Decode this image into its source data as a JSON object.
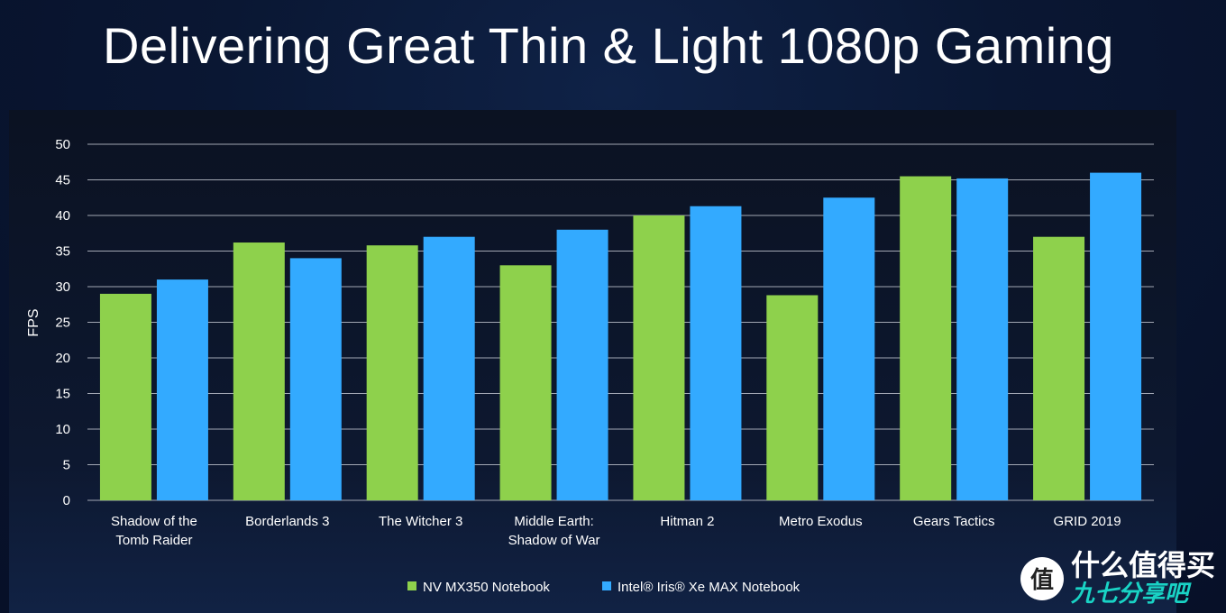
{
  "title": "Delivering Great Thin & Light 1080p Gaming",
  "colors": {
    "series1": "#8ed14c",
    "series2": "#33aaff",
    "grid": "#c8ccd6",
    "text": "#ffffff"
  },
  "watermark": {
    "logo_char": "值",
    "main": "什么值得买",
    "sub": "九七分享吧"
  },
  "chart_data": {
    "type": "bar",
    "title": "Delivering Great Thin & Light 1080p Gaming",
    "ylabel": "FPS",
    "xlabel": "",
    "ylim": [
      0,
      50
    ],
    "yticks": [
      0,
      5,
      10,
      15,
      20,
      25,
      30,
      35,
      40,
      45,
      50
    ],
    "grid": true,
    "legend_position": "bottom-center",
    "categories": [
      [
        "Shadow of the",
        "Tomb Raider"
      ],
      [
        "Borderlands 3"
      ],
      [
        "The Witcher 3"
      ],
      [
        "Middle Earth:",
        "Shadow of War"
      ],
      [
        "Hitman 2"
      ],
      [
        "Metro Exodus"
      ],
      [
        "Gears Tactics"
      ],
      [
        "GRID 2019"
      ]
    ],
    "series": [
      {
        "name": "NV MX350 Notebook",
        "values": [
          29,
          36.2,
          35.8,
          33,
          40,
          28.8,
          45.5,
          37
        ]
      },
      {
        "name": "Intel® Iris® Xe MAX Notebook",
        "values": [
          31,
          34,
          37,
          38,
          41.3,
          42.5,
          45.2,
          46
        ]
      }
    ]
  }
}
